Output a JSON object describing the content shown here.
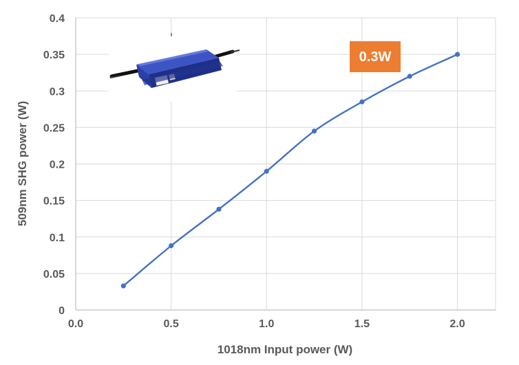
{
  "chart_data": {
    "type": "line",
    "xlabel": "1018nm Input power (W)",
    "ylabel": "509nm SHG power (W)",
    "xlim": [
      0,
      2.2
    ],
    "ylim": [
      0,
      0.4
    ],
    "x_ticks": [
      "0.0",
      "0.5",
      "1.0",
      "1.5",
      "2.0"
    ],
    "y_ticks": [
      "0",
      "0.05",
      "0.1",
      "0.15",
      "0.2",
      "0.25",
      "0.3",
      "0.35",
      "0.4"
    ],
    "grid": "vertical and horizontal",
    "series": [
      {
        "x": [
          0.25,
          0.5,
          0.75,
          1.0,
          1.25,
          1.5,
          1.75,
          2.0
        ],
        "values": [
          0.033,
          0.088,
          0.138,
          0.19,
          0.245,
          0.285,
          0.32,
          0.35
        ],
        "color": "#4472C4"
      }
    ],
    "annotation": {
      "text": "0.3W",
      "color": "#ED7D31"
    },
    "inset_image": "blue-shg-module-photo"
  }
}
